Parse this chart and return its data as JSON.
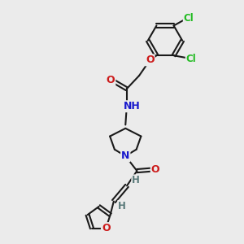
{
  "background_color": "#ebebeb",
  "atom_colors": {
    "C": "#1a1a1a",
    "N": "#1a1acc",
    "O": "#cc1a1a",
    "Cl": "#22bb22",
    "H": "#5a7a7a"
  },
  "bond_color": "#1a1a1a",
  "bond_width": 1.5,
  "dbo": 0.07,
  "figsize": [
    3.0,
    3.0
  ],
  "dpi": 100
}
